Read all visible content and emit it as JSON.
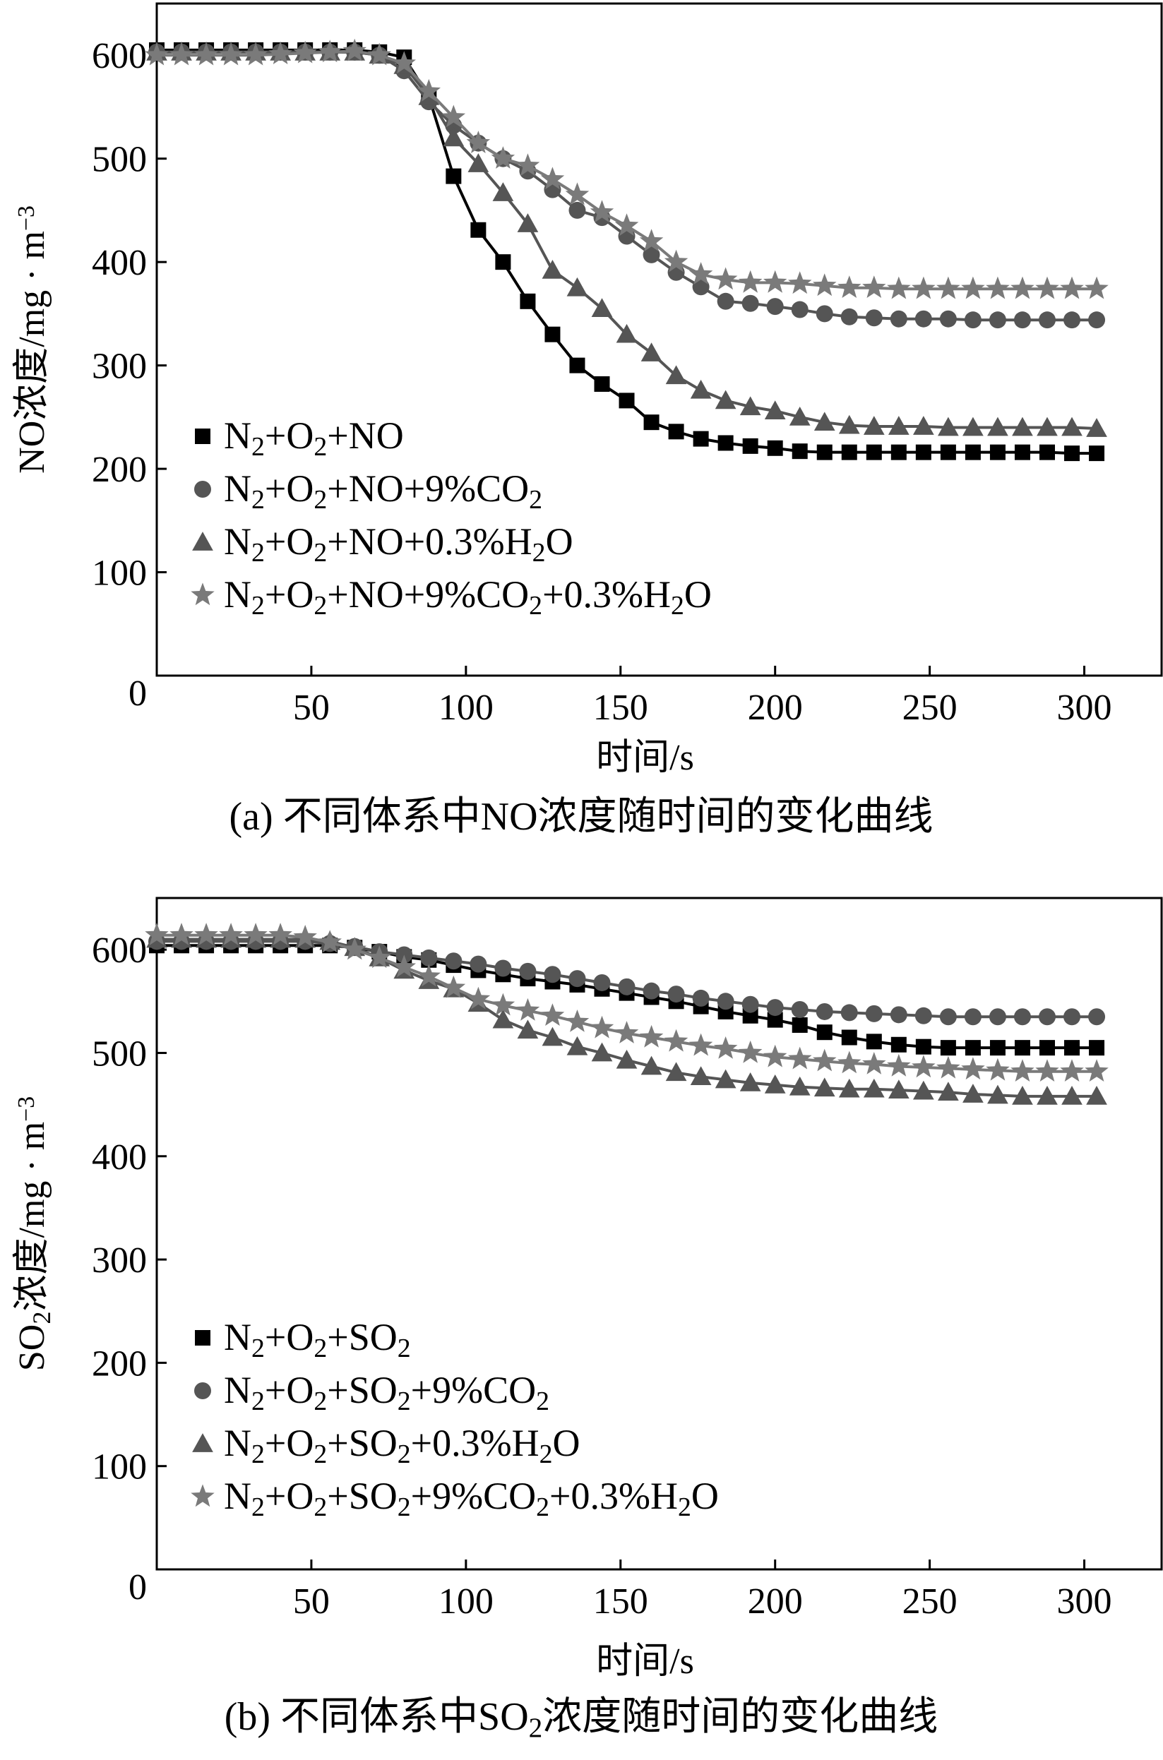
{
  "chart_data": [
    {
      "type": "line",
      "title": "",
      "caption_prefix": "(a) 不同体系中",
      "caption_suffix": "NO浓度随时间的变化曲线",
      "xlabel": "时间/s",
      "ylabel": "NO浓度/mg · m⁻³",
      "ylabel_parts": [
        "NO浓度/mg · m",
        "−3"
      ],
      "xlim": [
        0,
        325
      ],
      "ylim": [
        0,
        650
      ],
      "xticks": [
        50,
        100,
        150,
        200,
        250,
        300
      ],
      "yticks": [
        0,
        100,
        200,
        300,
        400,
        500,
        600
      ],
      "grid": false,
      "legend_position": "lower-left",
      "x": [
        0,
        8,
        16,
        24,
        32,
        40,
        48,
        56,
        64,
        72,
        80,
        88,
        96,
        104,
        112,
        120,
        128,
        136,
        144,
        152,
        160,
        168,
        176,
        184,
        192,
        200,
        208,
        216,
        224,
        232,
        240,
        248,
        256,
        264,
        272,
        280,
        288,
        296,
        304
      ],
      "series": [
        {
          "name": "N₂+O₂+NO",
          "legend_parts": [
            "N",
            "2",
            "+O",
            "2",
            "+NO"
          ],
          "marker": "square",
          "color": "#000000",
          "values": [
            605,
            605,
            605,
            605,
            605,
            605,
            605,
            605,
            605,
            603,
            598,
            560,
            483,
            431,
            400,
            362,
            330,
            300,
            282,
            266,
            245,
            236,
            229,
            225,
            222,
            220,
            217,
            216,
            216,
            216,
            216,
            216,
            216,
            216,
            216,
            216,
            216,
            215,
            215
          ]
        },
        {
          "name": "N₂+O₂+NO+9%CO₂",
          "legend_parts": [
            "N",
            "2",
            "+O",
            "2",
            "+NO+9%CO",
            "2"
          ],
          "marker": "circle",
          "color": "#555555",
          "values": [
            603,
            603,
            603,
            603,
            603,
            603,
            603,
            603,
            603,
            600,
            585,
            555,
            532,
            515,
            500,
            488,
            470,
            450,
            443,
            425,
            407,
            390,
            376,
            362,
            360,
            357,
            354,
            350,
            347,
            346,
            345,
            345,
            345,
            344,
            344,
            344,
            344,
            344,
            344
          ]
        },
        {
          "name": "N₂+O₂+NO+0.3%H₂O",
          "legend_parts": [
            "N",
            "2",
            "+O",
            "2",
            "+NO+0.3%H",
            "2",
            "O"
          ],
          "marker": "triangle",
          "color": "#555555",
          "values": [
            603,
            603,
            603,
            603,
            603,
            603,
            603,
            603,
            603,
            600,
            590,
            560,
            520,
            495,
            467,
            437,
            392,
            375,
            355,
            330,
            312,
            290,
            276,
            266,
            260,
            256,
            250,
            245,
            242,
            241,
            241,
            241,
            240,
            240,
            240,
            240,
            240,
            240,
            239
          ]
        },
        {
          "name": "N₂+O₂+NO+9%CO₂+0.3%H₂O",
          "legend_parts": [
            "N",
            "2",
            "+O",
            "2",
            "+NO+9%CO",
            "2",
            "+0.3%H",
            "2",
            "O"
          ],
          "marker": "star",
          "color": "#7a7a7a",
          "values": [
            600,
            600,
            600,
            600,
            600,
            601,
            602,
            603,
            604,
            600,
            592,
            565,
            540,
            515,
            500,
            493,
            480,
            465,
            448,
            435,
            420,
            400,
            388,
            383,
            380,
            380,
            379,
            377,
            375,
            375,
            374,
            374,
            374,
            374,
            374,
            374,
            374,
            374,
            374
          ]
        }
      ]
    },
    {
      "type": "line",
      "title": "",
      "caption_prefix": "(b) 不同体系中",
      "caption_suffix": "SO₂浓度随时间的变化曲线",
      "caption_parts": [
        "SO",
        "2",
        "浓度随时间的变化曲线"
      ],
      "xlabel": "时间/s",
      "ylabel": "SO₂浓度/mg · m⁻³",
      "ylabel_parts": [
        "SO",
        "2",
        "浓度/mg · m",
        "−3"
      ],
      "xlim": [
        0,
        325
      ],
      "ylim": [
        0,
        650
      ],
      "xticks": [
        50,
        100,
        150,
        200,
        250,
        300
      ],
      "yticks": [
        0,
        100,
        200,
        300,
        400,
        500,
        600
      ],
      "grid": false,
      "legend_position": "lower-left",
      "x": [
        0,
        8,
        16,
        24,
        32,
        40,
        48,
        56,
        64,
        72,
        80,
        88,
        96,
        104,
        112,
        120,
        128,
        136,
        144,
        152,
        160,
        168,
        176,
        184,
        192,
        200,
        208,
        216,
        224,
        232,
        240,
        248,
        256,
        264,
        272,
        280,
        288,
        296,
        304
      ],
      "series": [
        {
          "name": "N₂+O₂+SO₂",
          "legend_parts": [
            "N",
            "2",
            "+O",
            "2",
            "+SO",
            "2"
          ],
          "marker": "square",
          "color": "#000000",
          "values": [
            604,
            604,
            604,
            604,
            604,
            604,
            604,
            604,
            602,
            598,
            593,
            590,
            585,
            580,
            576,
            572,
            569,
            566,
            562,
            558,
            554,
            550,
            545,
            540,
            536,
            532,
            527,
            520,
            515,
            511,
            508,
            506,
            505,
            505,
            505,
            505,
            505,
            505,
            505
          ]
        },
        {
          "name": "N₂+O₂+SO₂+9%CO₂",
          "legend_parts": [
            "N",
            "2",
            "+O",
            "2",
            "+SO",
            "2",
            "+9%CO",
            "2"
          ],
          "marker": "circle",
          "color": "#555555",
          "values": [
            608,
            608,
            608,
            608,
            608,
            608,
            608,
            606,
            603,
            598,
            595,
            592,
            589,
            586,
            582,
            579,
            576,
            572,
            568,
            564,
            560,
            557,
            553,
            550,
            547,
            544,
            542,
            540,
            539,
            538,
            537,
            536,
            535,
            535,
            535,
            535,
            535,
            535,
            535
          ]
        },
        {
          "name": "N₂+O₂+SO₂+0.3%H₂O",
          "legend_parts": [
            "N",
            "2",
            "+O",
            "2",
            "+SO",
            "2",
            "+0.3%H",
            "2",
            "O"
          ],
          "marker": "triangle",
          "color": "#555555",
          "values": [
            610,
            610,
            610,
            610,
            610,
            610,
            610,
            608,
            602,
            592,
            580,
            570,
            562,
            548,
            532,
            522,
            515,
            506,
            500,
            493,
            487,
            481,
            477,
            474,
            471,
            469,
            467,
            466,
            465,
            465,
            464,
            463,
            462,
            460,
            459,
            458,
            458,
            458,
            458
          ]
        },
        {
          "name": "N₂+O₂+SO₂+9%CO₂+0.3%H₂O",
          "legend_parts": [
            "N",
            "2",
            "+O",
            "2",
            "+SO",
            "2",
            "+9%CO",
            "2",
            "+0.3%H",
            "2",
            "O"
          ],
          "marker": "star",
          "color": "#7a7a7a",
          "values": [
            614,
            614,
            614,
            614,
            614,
            614,
            612,
            607,
            600,
            592,
            583,
            574,
            563,
            552,
            546,
            541,
            536,
            530,
            524,
            519,
            515,
            511,
            507,
            504,
            500,
            496,
            494,
            492,
            490,
            489,
            487,
            486,
            485,
            484,
            483,
            482,
            482,
            482,
            482
          ]
        }
      ]
    }
  ]
}
